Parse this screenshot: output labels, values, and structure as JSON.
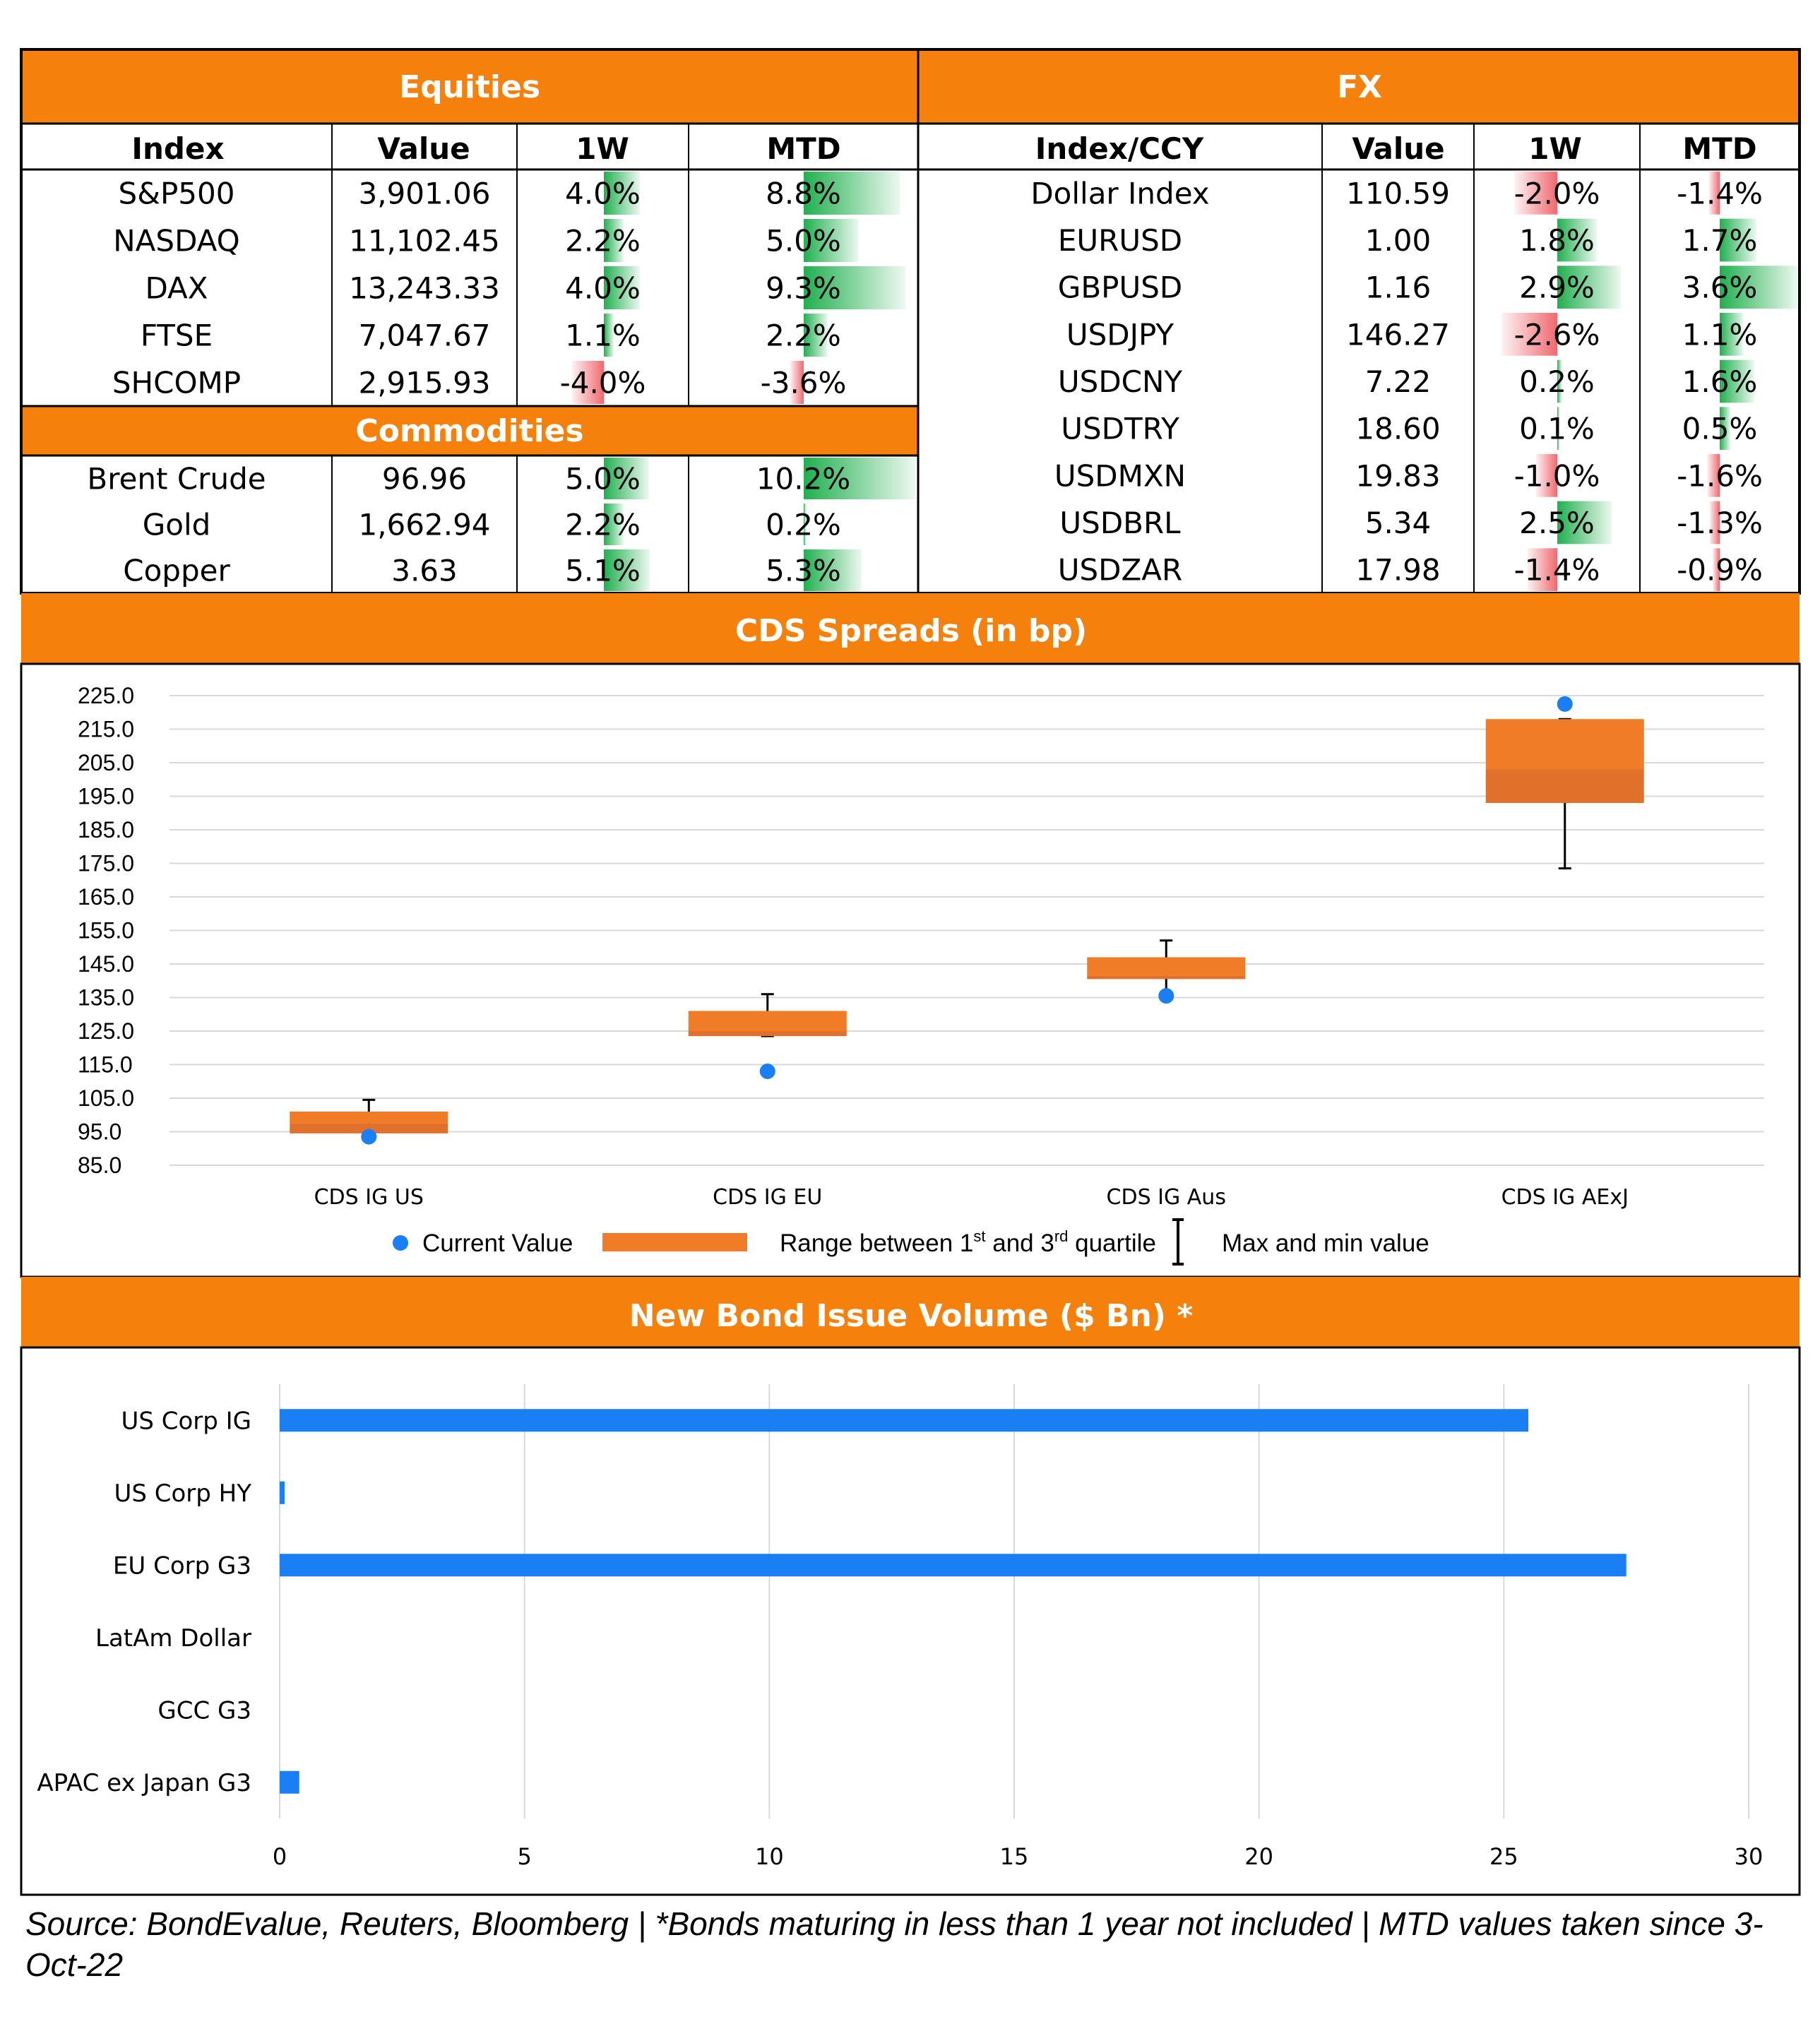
{
  "colors": {
    "orange": "#F5800B",
    "green": "#21B04F",
    "red": "#F0686F",
    "blue": "#1A7EF4",
    "box": "#F07C27",
    "boxDark": "#E0702A"
  },
  "equities": {
    "title": "Equities",
    "headers": [
      "Index",
      "Value",
      "1W",
      "MTD"
    ],
    "rows": [
      {
        "name": "S&P500",
        "value": "3,901.06",
        "w1": "4.0%",
        "mtd": "8.8%"
      },
      {
        "name": "NASDAQ",
        "value": "11,102.45",
        "w1": "2.2%",
        "mtd": "5.0%"
      },
      {
        "name": "DAX",
        "value": "13,243.33",
        "w1": "4.0%",
        "mtd": "9.3%"
      },
      {
        "name": "FTSE",
        "value": "7,047.67",
        "w1": "1.1%",
        "mtd": "2.2%"
      },
      {
        "name": "SHCOMP",
        "value": "2,915.93",
        "w1": "-4.0%",
        "mtd": "-3.6%"
      }
    ]
  },
  "commodities": {
    "title": "Commodities",
    "rows": [
      {
        "name": "Brent Crude",
        "value": "96.96",
        "w1": "5.0%",
        "mtd": "10.2%"
      },
      {
        "name": "Gold",
        "value": "1,662.94",
        "w1": "2.2%",
        "mtd": "0.2%"
      },
      {
        "name": "Copper",
        "value": "3.63",
        "w1": "5.1%",
        "mtd": "5.3%"
      }
    ]
  },
  "fx": {
    "title": "FX",
    "headers": [
      "Index/CCY",
      "Value",
      "1W",
      "MTD"
    ],
    "rows": [
      {
        "name": "Dollar Index",
        "value": "110.59",
        "w1": "-2.0%",
        "mtd": "-1.4%"
      },
      {
        "name": "EURUSD",
        "value": "1.00",
        "w1": "1.8%",
        "mtd": "1.7%"
      },
      {
        "name": "GBPUSD",
        "value": "1.16",
        "w1": "2.9%",
        "mtd": "3.6%"
      },
      {
        "name": "USDJPY",
        "value": "146.27",
        "w1": "-2.6%",
        "mtd": "1.1%"
      },
      {
        "name": "USDCNY",
        "value": "7.22",
        "w1": "0.2%",
        "mtd": "1.6%"
      },
      {
        "name": "USDTRY",
        "value": "18.60",
        "w1": "0.1%",
        "mtd": "0.5%"
      },
      {
        "name": "USDMXN",
        "value": "19.83",
        "w1": "-1.0%",
        "mtd": "-1.6%"
      },
      {
        "name": "USDBRL",
        "value": "5.34",
        "w1": "2.5%",
        "mtd": "-1.3%"
      },
      {
        "name": "USDZAR",
        "value": "17.98",
        "w1": "-1.4%",
        "mtd": "-0.9%"
      }
    ]
  },
  "cds": {
    "title": "CDS Spreads (in bp)",
    "legend": {
      "current": "Current Value",
      "range_pre": "Range between 1",
      "range_sup1": "st",
      "range_mid": " and 3",
      "range_sup2": "rd",
      "range_post": " quartile",
      "maxmin": "Max and min value"
    }
  },
  "bonds": {
    "title": "New Bond Issue Volume ($ Bn) *"
  },
  "source": "Source: BondEvalue, Reuters, Bloomberg | *Bonds maturing in less than 1 year not included | MTD values taken since 3-Oct-22",
  "chart_data": [
    {
      "type": "box",
      "title": "CDS Spreads (in bp)",
      "categories": [
        "CDS IG US",
        "CDS IG EU",
        "CDS IG Aus",
        "CDS IG AExJ"
      ],
      "q1": [
        94.5,
        123.5,
        140.5,
        193.0
      ],
      "median": [
        97.5,
        125.0,
        141.5,
        203.0
      ],
      "q3": [
        101.0,
        131.0,
        147.0,
        218.0
      ],
      "min": [
        93.5,
        123.5,
        135.0,
        173.5
      ],
      "max": [
        104.5,
        136.0,
        152.0,
        218.0
      ],
      "current": [
        93.5,
        113.0,
        135.5,
        222.5
      ],
      "ylim": [
        85.0,
        225.0
      ],
      "yticks": [
        "85.0",
        "95.0",
        "105.0",
        "115.0",
        "125.0",
        "135.0",
        "145.0",
        "155.0",
        "165.0",
        "175.0",
        "185.0",
        "195.0",
        "205.0",
        "215.0",
        "225.0"
      ],
      "grid": true,
      "legend": "bottom"
    },
    {
      "type": "bar",
      "orientation": "horizontal",
      "title": "New Bond Issue Volume ($ Bn) *",
      "categories": [
        "US Corp IG",
        "US Corp HY",
        "EU Corp G3",
        "LatAm Dollar",
        "GCC G3",
        "APAC ex Japan G3"
      ],
      "values": [
        25.5,
        0.1,
        27.5,
        0,
        0,
        0.4
      ],
      "xlim": [
        0,
        30
      ],
      "xticks": [
        "0",
        "5",
        "10",
        "15",
        "20",
        "25",
        "30"
      ],
      "grid": true
    }
  ]
}
